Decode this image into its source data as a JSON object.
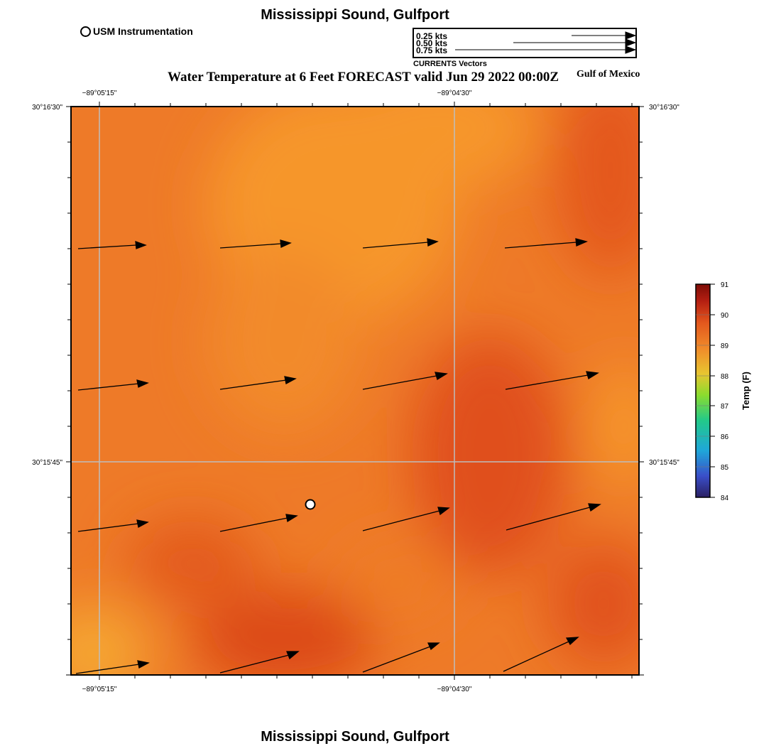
{
  "header": {
    "title": "Mississippi Sound, Gulfport",
    "forecast_title": "Water Temperature at 6 Feet FORECAST valid Jun 29 2022 00:00Z",
    "region": "Gulf of Mexico"
  },
  "legend": {
    "station_label": "USM Instrumentation",
    "vectors": [
      {
        "label": "0.25 kts",
        "speed_kts": 0.25
      },
      {
        "label": "0.50 kts",
        "speed_kts": 0.5
      },
      {
        "label": "0.75 kts",
        "speed_kts": 0.75
      }
    ],
    "vectors_caption": "CURRENTS Vectors"
  },
  "map": {
    "lon_ticks": [
      "−89°05'15\"",
      "−89°04'30\""
    ],
    "lat_ticks": [
      "30°16'30\"",
      "30°15'45\""
    ],
    "station_marker": "usm-station",
    "vector_color": "#000000",
    "gridline_color": "#bdbdbd"
  },
  "colorbar": {
    "label": "Temp (F)",
    "ticks": [
      "84",
      "85",
      "86",
      "87",
      "88",
      "89",
      "90",
      "91"
    ],
    "colors": [
      "#2a1f63",
      "#3b5bd6",
      "#1fa7d9",
      "#22c98a",
      "#8bdc2e",
      "#e8c530",
      "#f08a2a",
      "#e3571d",
      "#b51f12",
      "#7d0c06"
    ]
  },
  "footer": {
    "title": "Mississippi Sound, Gulfport"
  }
}
